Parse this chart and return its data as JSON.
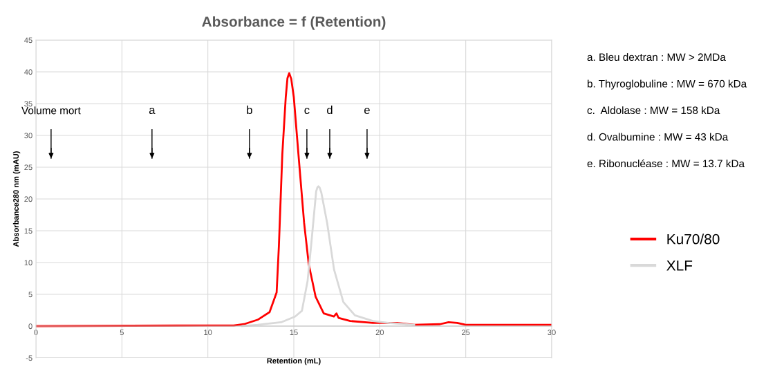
{
  "chart_data": {
    "type": "line",
    "title": "Absorbance = f (Retention)",
    "xlabel": "Retention (mL)",
    "ylabel": "Absorbance280 nm (mAU)",
    "xlim": [
      0,
      30
    ],
    "ylim": [
      -5,
      45
    ],
    "xticks": [
      0,
      5,
      10,
      15,
      20,
      25,
      30
    ],
    "yticks": [
      -5,
      0,
      5,
      10,
      15,
      20,
      25,
      30,
      35,
      40,
      45
    ],
    "grid": true,
    "legend": "right",
    "marker": "none",
    "line_style": "solid",
    "series": [
      {
        "name": "Ku70/80",
        "color": "#ff0000",
        "x": [
          0,
          10,
          11.5,
          12.1,
          12.9,
          13.59,
          14.0,
          14.13,
          14.33,
          14.53,
          14.63,
          14.73,
          14.85,
          15.0,
          15.27,
          15.6,
          15.87,
          16.27,
          16.74,
          17.33,
          17.48,
          17.6,
          18.28,
          19.6,
          20.0,
          21.0,
          22.0,
          23.5,
          24.0,
          24.5,
          25.0,
          30.0
        ],
        "values": [
          0,
          0.1,
          0.1,
          0.3,
          1.0,
          2.2,
          5.3,
          12.5,
          27,
          36,
          39.0,
          39.8,
          38.9,
          36,
          27,
          16.2,
          9.7,
          4.6,
          2.0,
          1.5,
          2.0,
          1.3,
          0.8,
          0.5,
          0.5,
          0.5,
          0.2,
          0.3,
          0.6,
          0.5,
          0.2,
          0.2
        ]
      },
      {
        "name": "XLF",
        "color": "#d9d9d9",
        "x": [
          12.0,
          12.9,
          14.26,
          15.07,
          15.47,
          15.8,
          16.0,
          16.3,
          16.37,
          16.43,
          16.5,
          16.6,
          16.94,
          17.34,
          17.88,
          18.55,
          19.6,
          20.5,
          22.0
        ],
        "values": [
          0,
          0.2,
          0.6,
          1.5,
          2.4,
          7.1,
          12.5,
          21.2,
          21.8,
          22,
          21.8,
          21.0,
          16.2,
          8.9,
          3.8,
          1.7,
          0.8,
          0.5,
          0.2
        ]
      }
    ],
    "ref_lines": [
      {
        "axis": "x",
        "value": 0.88,
        "label": "Volume mort"
      },
      {
        "axis": "x",
        "value": 6.75,
        "label": "a"
      },
      {
        "axis": "x",
        "value": 12.42,
        "label": "b"
      },
      {
        "axis": "x",
        "value": 15.76,
        "label": "c"
      },
      {
        "axis": "x",
        "value": 17.09,
        "label": "d"
      },
      {
        "axis": "x",
        "value": 19.26,
        "label": "e"
      }
    ],
    "annotations": [
      "a. Bleu dextran : MW > 2MDa",
      "b. Thyroglobuline : MW = 670 kDa",
      "c.  Aldolase : MW = 158 kDa",
      "d. Ovalbumine : MW = 43 kDa",
      "e. Ribonucléase : MW = 13.7 kDa"
    ]
  }
}
